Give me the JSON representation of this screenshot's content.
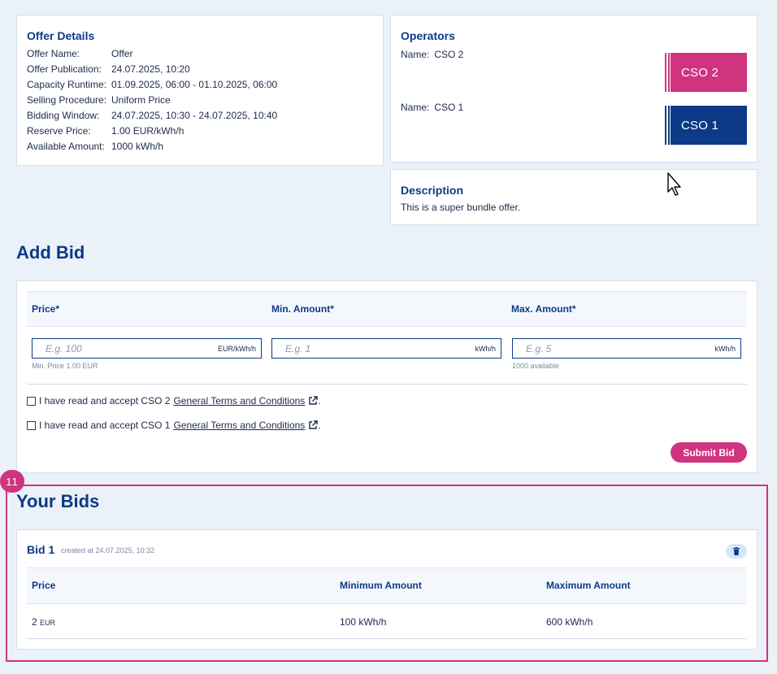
{
  "offer_details": {
    "title": "Offer Details",
    "rows": [
      {
        "label": "Offer Name:",
        "value": "Offer"
      },
      {
        "label": "Offer Publication:",
        "value": "24.07.2025, 10:20"
      },
      {
        "label": "Capacity Runtime:",
        "value": "01.09.2025, 06:00 - 01.10.2025, 06:00"
      },
      {
        "label": "Selling Procedure:",
        "value": "Uniform Price"
      },
      {
        "label": "Bidding Window:",
        "value": "24.07.2025, 10:30 - 24.07.2025, 10:40"
      },
      {
        "label": "Reserve Price:",
        "value": "1.00 EUR/kWh/h"
      },
      {
        "label": "Available Amount:",
        "value": "1000 kWh/h"
      }
    ]
  },
  "operators": {
    "title": "Operators",
    "items": [
      {
        "name_label": "Name:",
        "name": "CSO 2",
        "logo_text": "CSO 2",
        "color": "#d0347f"
      },
      {
        "name_label": "Name:",
        "name": "CSO 1",
        "logo_text": "CSO 1",
        "color": "#0d3a86"
      }
    ]
  },
  "description": {
    "title": "Description",
    "text": "This is a super bundle offer."
  },
  "add_bid": {
    "heading": "Add Bid",
    "columns": [
      {
        "label": "Price*",
        "placeholder": "E.g. 100",
        "unit": "EUR/kWh/h",
        "hint": "Min. Price 1.00 EUR"
      },
      {
        "label": "Min. Amount*",
        "placeholder": "E.g. 1",
        "unit": "kWh/h",
        "hint": ""
      },
      {
        "label": "Max. Amount*",
        "placeholder": "E.g. 5",
        "unit": "kWh/h",
        "hint": "1000 available"
      }
    ],
    "terms": [
      {
        "text": "I have read and accept CSO 2",
        "link": "General Terms and Conditions",
        "suffix": "."
      },
      {
        "text": "I have read and accept CSO 1",
        "link": "General Terms and Conditions",
        "suffix": "."
      }
    ],
    "submit_label": "Submit Bid"
  },
  "annotation_badge": "11",
  "your_bids": {
    "heading": "Your Bids",
    "bid": {
      "title": "Bid 1",
      "created": "created at 24.07.2025, 10:32",
      "headers": [
        "Price",
        "Minimum Amount",
        "Maximum Amount"
      ],
      "price_value": "2",
      "price_unit": "EUR",
      "min_amount": "100 kWh/h",
      "max_amount": "600 kWh/h"
    }
  },
  "colors": {
    "accent": "#d0347f",
    "brand": "#0d3a86",
    "background": "#eaf1f8"
  }
}
